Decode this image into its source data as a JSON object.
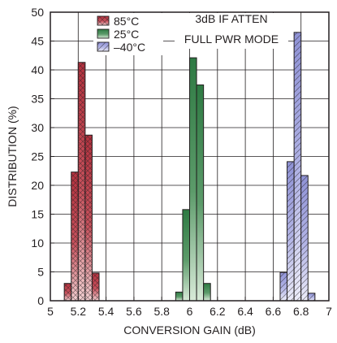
{
  "chart_data": {
    "type": "bar",
    "title": "",
    "xlabel": "CONVERSION GAIN (dB)",
    "ylabel": "DISTRIBUTION (%)",
    "xlim": [
      5,
      7
    ],
    "ylim": [
      0,
      50
    ],
    "x_ticks": [
      "5",
      "5.2",
      "5.4",
      "5.6",
      "5.8",
      "6",
      "6.2",
      "6.4",
      "6.6",
      "6.8",
      "7"
    ],
    "y_ticks": [
      "0",
      "5",
      "10",
      "15",
      "20",
      "25",
      "30",
      "35",
      "40",
      "45",
      "50"
    ],
    "bin_width": 0.05,
    "grid": true,
    "legend_position": "top-left",
    "annotation": [
      "3dB IF ATTEN",
      "FULL PWR MODE"
    ],
    "series": [
      {
        "name": "85°C",
        "color": "#b5323f",
        "light_color": "#f2c7c9",
        "hatch": "crosshatch",
        "x": [
          5.125,
          5.175,
          5.225,
          5.275,
          5.325
        ],
        "values": [
          3,
          22.3,
          41.3,
          28.7,
          4.8
        ]
      },
      {
        "name": "25°C",
        "color": "#2e7a43",
        "light_color": "#cfe3cf",
        "hatch": "solid",
        "x": [
          5.925,
          5.975,
          6.025,
          6.075,
          6.125
        ],
        "values": [
          1.5,
          15.8,
          42.1,
          37.4,
          3
        ]
      },
      {
        "name": "–40°C",
        "color": "#8f92d6",
        "light_color": "#e6e7f7",
        "hatch": "diagonal",
        "x": [
          6.675,
          6.725,
          6.775,
          6.825,
          6.875
        ],
        "values": [
          4.9,
          24.1,
          46.5,
          21.7,
          1.3
        ]
      }
    ]
  }
}
